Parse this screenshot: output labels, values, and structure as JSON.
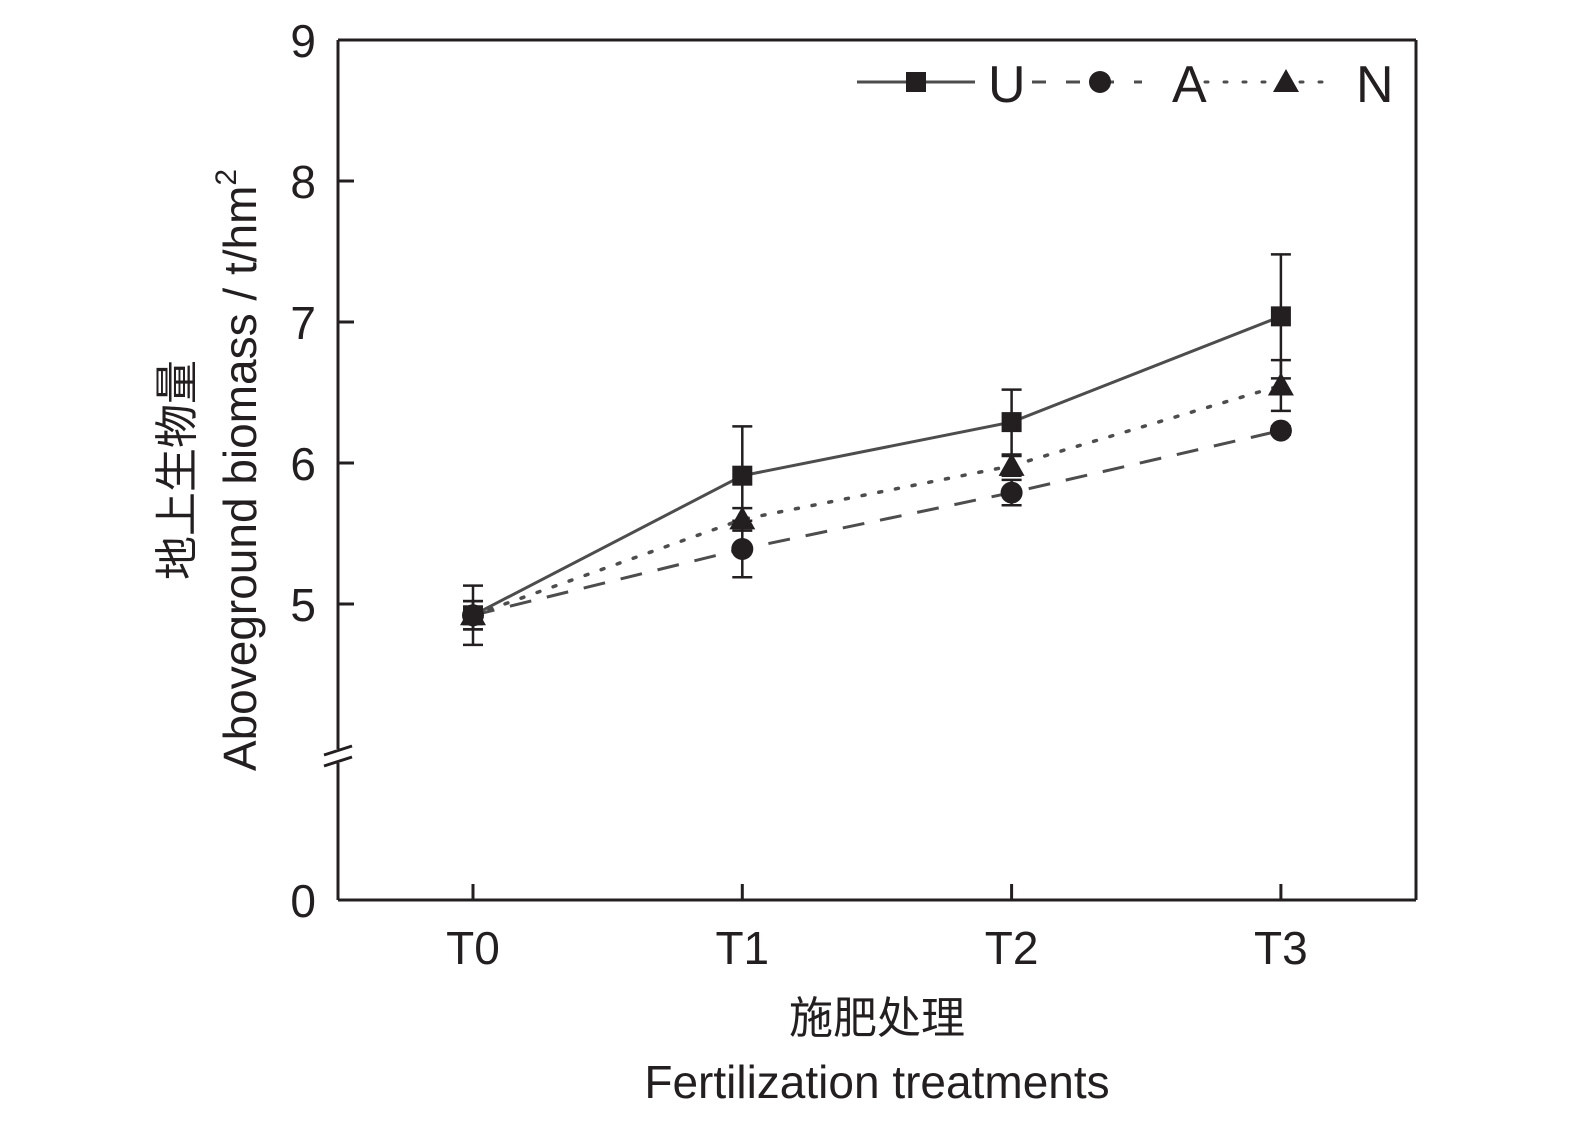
{
  "chart_data": {
    "type": "line",
    "title": "",
    "xlabel_zh": "施肥处理",
    "xlabel": "Fertilization treatments",
    "ylabel_zh": "地上生物量",
    "ylabel": "Aboveground biomass / t/hm",
    "ylabel_superscript": "2",
    "categories": [
      "T0",
      "T1",
      "T2",
      "T3"
    ],
    "y_ticks": [
      0,
      5,
      6,
      7,
      8,
      9
    ],
    "ylim": [
      0,
      9
    ],
    "y_axis_break": true,
    "grid": false,
    "legend_position": "top-right",
    "series": [
      {
        "name": "U",
        "marker": "square",
        "line_style": "solid",
        "color": "#231f20",
        "line_color": "#4d4d4d",
        "values": [
          4.92,
          5.91,
          6.29,
          7.04
        ],
        "error": [
          0.21,
          0.35,
          0.23,
          0.44
        ]
      },
      {
        "name": "A",
        "marker": "circle",
        "line_style": "dashed",
        "color": "#231f20",
        "line_color": "#4d4d4d",
        "values": [
          4.92,
          5.39,
          5.79,
          6.23
        ],
        "error": [
          0.1,
          0.2,
          0.09,
          0.03
        ]
      },
      {
        "name": "N",
        "marker": "triangle",
        "line_style": "dotted",
        "color": "#231f20",
        "line_color": "#4d4d4d",
        "values": [
          4.92,
          5.6,
          5.98,
          6.55
        ],
        "error": [
          0.1,
          0.08,
          0.07,
          0.18
        ]
      }
    ]
  }
}
